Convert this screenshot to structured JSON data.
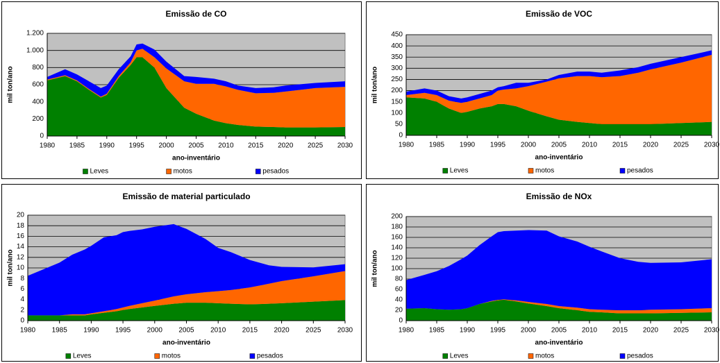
{
  "chart_data": [
    {
      "type": "area",
      "stacked": true,
      "title": "Emissão de CO",
      "x_label": "ano-inventário",
      "y_label": "mil ton/ano",
      "x": [
        1980,
        1983,
        1985,
        1987,
        1989,
        1990,
        1992,
        1994,
        1995,
        1996,
        1998,
        2000,
        2003,
        2005,
        2008,
        2010,
        2012,
        2015,
        2018,
        2020,
        2025,
        2030
      ],
      "xlim": [
        1980,
        2030
      ],
      "xticks": [
        1980,
        1985,
        1990,
        1995,
        2000,
        2005,
        2010,
        2015,
        2020,
        2025,
        2030
      ],
      "ylim": [
        0,
        1200
      ],
      "yticks": [
        0,
        200,
        400,
        600,
        800,
        {
          "value": 1000,
          "label": "1.000"
        },
        {
          "value": 1200,
          "label": "1.200"
        }
      ],
      "grid": true,
      "series": [
        {
          "name": "Leves",
          "color": "#008000",
          "values": [
            650,
            700,
            640,
            540,
            450,
            480,
            680,
            830,
            920,
            920,
            800,
            560,
            330,
            260,
            180,
            150,
            130,
            110,
            105,
            100,
            100,
            105
          ]
        },
        {
          "name": "motos",
          "color": "#ff6600",
          "values": [
            10,
            10,
            10,
            10,
            10,
            15,
            20,
            30,
            80,
            100,
            120,
            230,
            310,
            350,
            430,
            430,
            410,
            390,
            400,
            420,
            460,
            470
          ]
        },
        {
          "name": "pesados",
          "color": "#0000ff",
          "values": [
            30,
            70,
            70,
            90,
            100,
            95,
            80,
            70,
            70,
            60,
            90,
            80,
            60,
            80,
            60,
            60,
            50,
            60,
            65,
            70,
            60,
            65
          ]
        }
      ]
    },
    {
      "type": "area",
      "stacked": true,
      "title": "Emissão de VOC",
      "x_label": "ano-inventário",
      "y_label": "mil ton/ano",
      "x": [
        1980,
        1983,
        1985,
        1987,
        1989,
        1990,
        1992,
        1994,
        1995,
        1996,
        1998,
        2000,
        2003,
        2005,
        2008,
        2010,
        2012,
        2015,
        2018,
        2020,
        2025,
        2030
      ],
      "xlim": [
        1980,
        2030
      ],
      "xticks": [
        1980,
        1985,
        1990,
        1995,
        2000,
        2005,
        2010,
        2015,
        2020,
        2025,
        2030
      ],
      "ylim": [
        0,
        450
      ],
      "yticks": [
        0,
        50,
        100,
        150,
        200,
        250,
        300,
        350,
        400,
        450
      ],
      "grid": true,
      "series": [
        {
          "name": "Leves",
          "color": "#008000",
          "values": [
            170,
            165,
            150,
            120,
            100,
            105,
            120,
            130,
            140,
            140,
            130,
            110,
            85,
            70,
            60,
            55,
            50,
            50,
            50,
            50,
            55,
            60
          ]
        },
        {
          "name": "motos",
          "color": "#ff6600",
          "values": [
            10,
            25,
            30,
            35,
            45,
            45,
            45,
            50,
            60,
            65,
            80,
            110,
            155,
            185,
            205,
            210,
            210,
            215,
            230,
            245,
            270,
            300
          ]
        },
        {
          "name": "pesados",
          "color": "#0000ff",
          "values": [
            15,
            20,
            20,
            20,
            20,
            20,
            20,
            20,
            15,
            15,
            25,
            15,
            10,
            15,
            20,
            20,
            20,
            25,
            25,
            25,
            25,
            20
          ]
        }
      ]
    },
    {
      "type": "area",
      "stacked": true,
      "title": "Emissão de material particulado",
      "x_label": "ano-inventário",
      "y_label": "mil ton/ano",
      "x": [
        1980,
        1983,
        1985,
        1987,
        1989,
        1990,
        1992,
        1994,
        1995,
        1996,
        1998,
        2000,
        2003,
        2005,
        2008,
        2010,
        2012,
        2015,
        2018,
        2020,
        2025,
        2030
      ],
      "xlim": [
        1980,
        2030
      ],
      "xticks": [
        1980,
        1985,
        1990,
        1995,
        2000,
        2005,
        2010,
        2015,
        2020,
        2025,
        2030
      ],
      "ylim": [
        0,
        20
      ],
      "yticks": [
        0,
        2,
        4,
        6,
        8,
        10,
        12,
        14,
        16,
        18,
        20
      ],
      "grid": true,
      "series": [
        {
          "name": "Leves",
          "color": "#008000",
          "values": [
            1,
            1,
            1,
            1,
            1,
            1.2,
            1.5,
            1.8,
            2,
            2.2,
            2.5,
            2.8,
            3.2,
            3.4,
            3.4,
            3.3,
            3.2,
            3.1,
            3.2,
            3.3,
            3.6,
            3.9
          ]
        },
        {
          "name": "motos",
          "color": "#ff6600",
          "values": [
            0,
            0,
            0,
            0.2,
            0.2,
            0.2,
            0.3,
            0.4,
            0.5,
            0.6,
            0.8,
            1,
            1.4,
            1.6,
            2,
            2.3,
            2.6,
            3.2,
            3.8,
            4.2,
            4.8,
            5.5
          ]
        },
        {
          "name": "pesados",
          "color": "#0000ff",
          "values": [
            7.5,
            9,
            10,
            11.3,
            12.3,
            12.8,
            14,
            14,
            14.3,
            14.2,
            14,
            14,
            13.7,
            12.4,
            10.1,
            8.2,
            7.2,
            5.2,
            3.5,
            2.7,
            1.7,
            1.3
          ]
        }
      ]
    },
    {
      "type": "area",
      "stacked": true,
      "title": "Emissão de NOx",
      "x_label": "ano-inventário",
      "y_label": "mil ton/ano",
      "x": [
        1980,
        1983,
        1985,
        1987,
        1989,
        1990,
        1992,
        1994,
        1995,
        1996,
        1998,
        2000,
        2003,
        2005,
        2008,
        2010,
        2012,
        2015,
        2018,
        2020,
        2025,
        2030
      ],
      "xlim": [
        1980,
        2030
      ],
      "xticks": [
        1980,
        1985,
        1990,
        1995,
        2000,
        2005,
        2010,
        2015,
        2020,
        2025,
        2030
      ],
      "ylim": [
        0,
        200
      ],
      "yticks": [
        0,
        20,
        40,
        60,
        80,
        100,
        120,
        140,
        160,
        180,
        200
      ],
      "grid": true,
      "series": [
        {
          "name": "Leves",
          "color": "#008000",
          "values": [
            23,
            24,
            22,
            21,
            22,
            24,
            32,
            37,
            39,
            40,
            37,
            33,
            28,
            24,
            20,
            17,
            16,
            14,
            14,
            14,
            15,
            16
          ]
        },
        {
          "name": "motos",
          "color": "#ff6600",
          "values": [
            0,
            0,
            0,
            0,
            0,
            0,
            0,
            1,
            1,
            1,
            2,
            3,
            4,
            4,
            5,
            5,
            5,
            6,
            6,
            7,
            7,
            8
          ]
        },
        {
          "name": "pesados",
          "color": "#0000ff",
          "values": [
            55,
            64,
            73,
            84,
            96,
            101,
            113,
            124,
            130,
            131,
            134,
            138,
            141,
            134,
            127,
            120,
            112,
            100,
            93,
            90,
            90,
            94
          ]
        }
      ]
    }
  ]
}
